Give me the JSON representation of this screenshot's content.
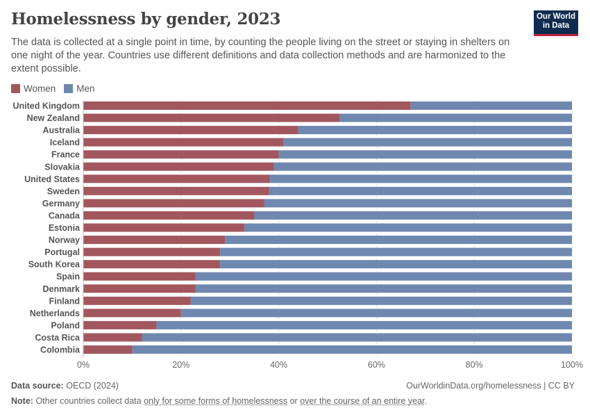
{
  "header": {
    "title": "Homelessness by gender, 2023",
    "subtitle": "The data is collected at a single point in time, by counting the people living on the street or staying in shelters on one night of the year. Countries use different definitions and data collection methods and are harmonized to the extent possible.",
    "logo": "Our World in Data"
  },
  "colors": {
    "women": "#a2575f",
    "men": "#6f88b0"
  },
  "chart_data": {
    "type": "bar",
    "orientation": "horizontal",
    "stacked": true,
    "normalized": true,
    "categories": [
      "United Kingdom",
      "New Zealand",
      "Australia",
      "Iceland",
      "France",
      "Slovakia",
      "United States",
      "Sweden",
      "Germany",
      "Canada",
      "Estonia",
      "Norway",
      "Portugal",
      "South Korea",
      "Spain",
      "Denmark",
      "Finland",
      "Netherlands",
      "Poland",
      "Costa Rica",
      "Colombia"
    ],
    "series": [
      {
        "name": "Women",
        "values": [
          67,
          52.5,
          44,
          41,
          40,
          39,
          38.2,
          38,
          37,
          35,
          33,
          29,
          28,
          28,
          23,
          23,
          22,
          20,
          15,
          12,
          10
        ]
      },
      {
        "name": "Men",
        "values": [
          33,
          47.5,
          56,
          59,
          60,
          61,
          61.8,
          62,
          63,
          65,
          67,
          71,
          72,
          72,
          77,
          77,
          78,
          80,
          85,
          88,
          90
        ]
      }
    ],
    "xlim": [
      0,
      100
    ],
    "xticks": [
      "0%",
      "20%",
      "40%",
      "60%",
      "80%",
      "100%"
    ],
    "grid": true,
    "legend": "top-left"
  },
  "footer": {
    "source_label": "Data source:",
    "source": "OECD (2024)",
    "url": "OurWorldinData.org/homelessness | CC BY",
    "note_label": "Note:",
    "note_1": "Other countries collect data",
    "note_link1": "only for some forms of homelessness",
    "note_2": "or",
    "note_link2": "over the course of an entire year",
    "note_3": "."
  }
}
